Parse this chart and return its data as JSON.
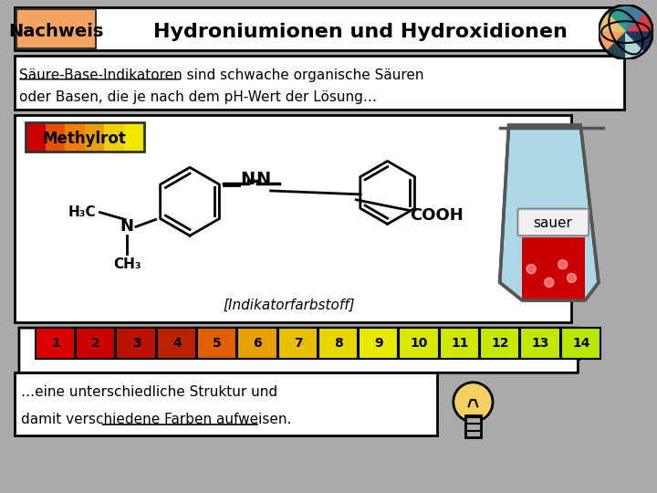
{
  "bg_color": "#aaaaaa",
  "title_text": "Hydroniumionen und Hydroxidionen",
  "title_bg": "#ffffff",
  "nachweis_bg": "#f4a460",
  "nachweis_text": "Nachweis",
  "subtitle_line1": "Säure-Base-Indikatoren sind schwache organische Säuren",
  "subtitle_line2": "oder Basen, die je nach dem pH-Wert der Lösung…",
  "bottom_line1": "…eine unterschiedliche Struktur und",
  "bottom_line2": "damit verschiedene Farben aufweisen.",
  "methylrot_text": "Methylrot",
  "indikatorfarbstoff": "[Indikatorfarbstoff]",
  "sauer_text": "sauer",
  "ph_numbers": [
    "1",
    "2",
    "3",
    "4",
    "5",
    "6",
    "7",
    "8",
    "9",
    "10",
    "11",
    "12",
    "13",
    "14"
  ],
  "ph_colors_r": [
    1.0,
    0.95,
    0.85,
    0.75,
    0.65,
    0.55,
    0.45,
    0.35,
    0.25,
    0.15,
    0.05,
    1.0,
    1.0,
    1.0
  ],
  "ph_colors_g": [
    0.0,
    0.0,
    0.0,
    0.0,
    0.1,
    0.2,
    0.3,
    0.4,
    0.5,
    0.6,
    0.7,
    0.9,
    0.9,
    0.9
  ],
  "ph_colors_b": [
    0.0,
    0.0,
    0.0,
    0.0,
    0.0,
    0.0,
    0.0,
    0.0,
    0.0,
    0.0,
    0.0,
    0.0,
    0.0,
    0.0
  ]
}
